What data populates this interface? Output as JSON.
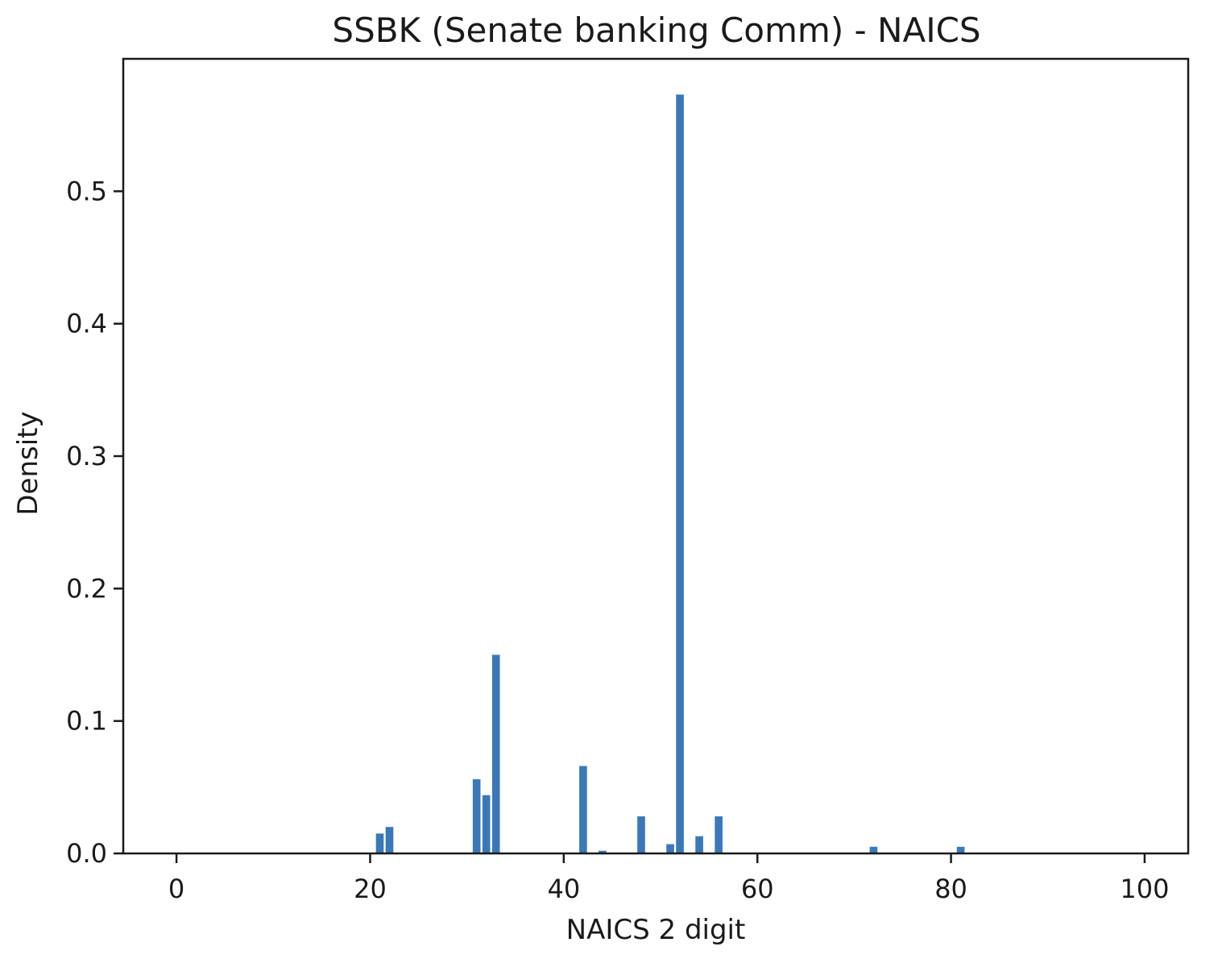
{
  "chart_data": {
    "type": "bar",
    "title": "SSBK (Senate banking Comm) - NAICS",
    "xlabel": "NAICS 2 digit",
    "ylabel": "Density",
    "xlim": [
      -5.5,
      104.5
    ],
    "ylim": [
      0,
      0.6
    ],
    "xticks": [
      0,
      20,
      40,
      60,
      80,
      100
    ],
    "yticks": [
      0.0,
      0.1,
      0.2,
      0.3,
      0.4,
      0.5
    ],
    "ytick_labels": [
      "0.0",
      "0.1",
      "0.2",
      "0.3",
      "0.4",
      "0.5"
    ],
    "grid": false,
    "bar_color": "#3b78b8",
    "bar_width": 0.8,
    "x": [
      21,
      22,
      31,
      32,
      33,
      42,
      44,
      48,
      51,
      52,
      54,
      56,
      72,
      81
    ],
    "values": [
      0.015,
      0.02,
      0.056,
      0.044,
      0.15,
      0.066,
      0.002,
      0.028,
      0.007,
      0.573,
      0.013,
      0.028,
      0.005,
      0.005
    ]
  }
}
